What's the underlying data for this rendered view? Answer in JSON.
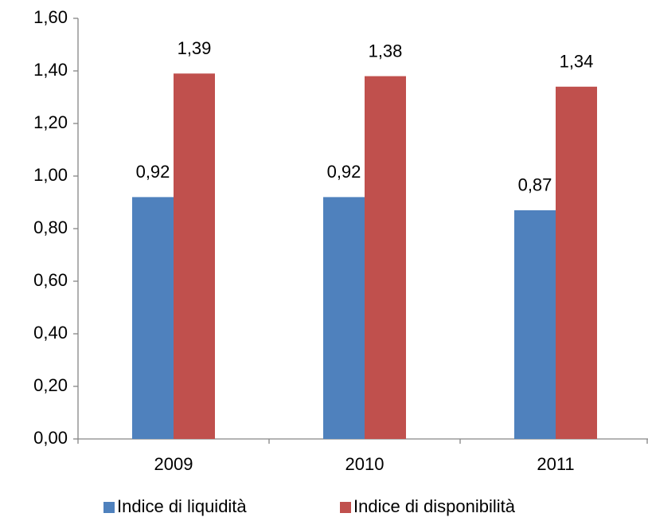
{
  "chart_data": {
    "type": "bar",
    "categories": [
      "2009",
      "2010",
      "2011"
    ],
    "series": [
      {
        "name": "Indice di liquidità",
        "color": "#4f81bd",
        "values": [
          0.92,
          0.92,
          0.87
        ],
        "value_labels": [
          "0,92",
          "0,92",
          "0,87"
        ]
      },
      {
        "name": "Indice di disponibilità",
        "color": "#c0504d",
        "values": [
          1.39,
          1.38,
          1.34
        ],
        "value_labels": [
          "1,39",
          "1,38",
          "1,34"
        ]
      }
    ],
    "ylim": [
      0,
      1.6
    ],
    "yticks": [
      {
        "value": 0,
        "label": "0,00"
      },
      {
        "value": 0.2,
        "label": "0,20"
      },
      {
        "value": 0.4,
        "label": "0,40"
      },
      {
        "value": 0.6,
        "label": "0,60"
      },
      {
        "value": 0.8,
        "label": "0,80"
      },
      {
        "value": 1.0,
        "label": "1,00"
      },
      {
        "value": 1.2,
        "label": "1,20"
      },
      {
        "value": 1.4,
        "label": "1,40"
      },
      {
        "value": 1.6,
        "label": "1,60"
      }
    ],
    "grid": false,
    "legend": "bottom"
  }
}
